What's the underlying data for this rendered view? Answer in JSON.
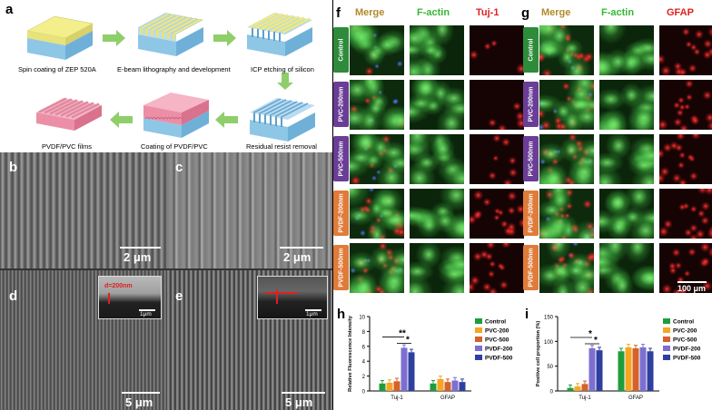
{
  "panel_labels": {
    "a": "a",
    "b": "b",
    "c": "c",
    "d": "d",
    "e": "e",
    "f": "f",
    "g": "g",
    "h": "h",
    "i": "i"
  },
  "fabrication_steps": [
    "Spin coating of ZEP 520A",
    "E-beam lithography and development",
    "ICP etching of silicon",
    "Residual resist removal",
    "Coating of PVDF/PVC",
    "PVDF/PVC films"
  ],
  "sem": {
    "b_scale": "2 μm",
    "c_scale": "2 μm",
    "d_scale": "5 μm",
    "e_scale": "5 μm",
    "d_inset_scale": "1μm",
    "e_inset_scale": "1μm",
    "d_inset_annot": "d=200nm"
  },
  "fluor": {
    "f_headers": [
      "Merge",
      "F-actin",
      "Tuj-1"
    ],
    "g_headers": [
      "Merge",
      "F-actin",
      "GFAP"
    ],
    "row_labels": [
      "Control",
      "PVC-200nm",
      "PVC-500nm",
      "PVDF-200nm",
      "PVDF-500nm"
    ],
    "scale": "100 μm"
  },
  "colors": {
    "Control": "#1e9d3c",
    "PVC-200": "#f5a623",
    "PVC-500": "#d4622a",
    "PVDF-200": "#7d6fd0",
    "PVDF-500": "#2f3fa0",
    "row_control": "#2e8b3a",
    "row_pvc": "#6a3d96",
    "row_pvdf": "#e07b39"
  },
  "chart_data": [
    {
      "type": "bar",
      "panel": "h",
      "categories": [
        "Tuj-1",
        "GFAP"
      ],
      "ylabel": "Relative Fluorescence Intensity",
      "ylim": [
        0,
        10
      ],
      "yticks": [
        0,
        2,
        4,
        6,
        8,
        10
      ],
      "series": [
        {
          "name": "Control",
          "values": [
            1.0,
            1.0
          ]
        },
        {
          "name": "PVC-200",
          "values": [
            1.1,
            1.6
          ]
        },
        {
          "name": "PVC-500",
          "values": [
            1.3,
            1.2
          ]
        },
        {
          "name": "PVDF-200",
          "values": [
            5.8,
            1.4
          ]
        },
        {
          "name": "PVDF-500",
          "values": [
            5.2,
            1.2
          ]
        }
      ],
      "significance": [
        "**",
        "*"
      ]
    },
    {
      "type": "bar",
      "panel": "i",
      "categories": [
        "Tuj-1",
        "GFAP"
      ],
      "ylabel": "Positive cell proportion (%)",
      "ylim": [
        0,
        150
      ],
      "yticks": [
        0,
        50,
        100,
        150
      ],
      "series": [
        {
          "name": "Control",
          "values": [
            6,
            80
          ]
        },
        {
          "name": "PVC-200",
          "values": [
            9,
            88
          ]
        },
        {
          "name": "PVC-500",
          "values": [
            14,
            86
          ]
        },
        {
          "name": "PVDF-200",
          "values": [
            86,
            88
          ]
        },
        {
          "name": "PVDF-500",
          "values": [
            82,
            80
          ]
        }
      ],
      "significance": [
        "*",
        "*"
      ]
    }
  ]
}
